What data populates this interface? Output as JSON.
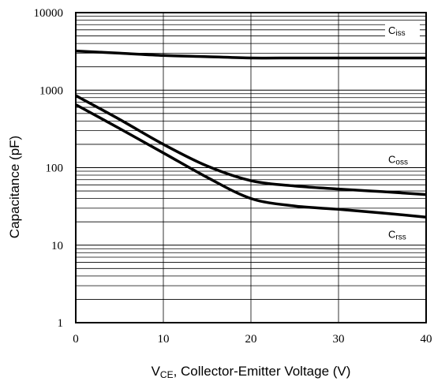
{
  "chart_data": {
    "type": "line",
    "title": "",
    "xlabel_main": "V",
    "xlabel_sub": "CE",
    "xlabel_rest": ", Collector-Emitter Voltage (V)",
    "ylabel": "Capacitance (pF)",
    "xlim": [
      0,
      40
    ],
    "ylim": [
      1,
      10000
    ],
    "y_scale": "log",
    "grid": true,
    "x_ticks": [
      0,
      10,
      20,
      30,
      40
    ],
    "y_ticks": [
      {
        "value": 1,
        "label": "1"
      },
      {
        "value": 10,
        "label": "10"
      },
      {
        "value": 100,
        "label": "100"
      },
      {
        "value": 1000,
        "label": "1000"
      },
      {
        "value": 10000,
        "label": "10000"
      }
    ],
    "series": [
      {
        "name": "C",
        "name_sub": "iss",
        "x": [
          0,
          5,
          10,
          15,
          20,
          25,
          30,
          35,
          40
        ],
        "values": [
          3200,
          3000,
          2800,
          2700,
          2600,
          2600,
          2600,
          2600,
          2600
        ]
      },
      {
        "name": "C",
        "name_sub": "oss",
        "x": [
          0,
          5,
          10,
          15,
          20,
          25,
          30,
          35,
          40
        ],
        "values": [
          850,
          420,
          200,
          105,
          68,
          58,
          53,
          49,
          45
        ]
      },
      {
        "name": "C",
        "name_sub": "rss",
        "x": [
          0,
          5,
          10,
          15,
          20,
          25,
          30,
          35,
          40
        ],
        "values": [
          650,
          320,
          155,
          75,
          40,
          32,
          29,
          26,
          23
        ]
      }
    ]
  }
}
